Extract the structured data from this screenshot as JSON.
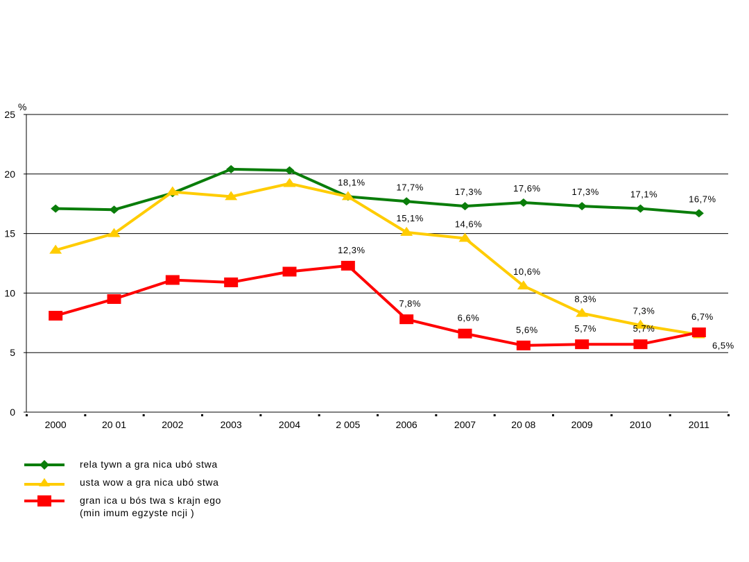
{
  "chart_data": {
    "type": "line",
    "title": "",
    "ylabel": "%",
    "xlabel": "",
    "ylim": [
      0,
      25
    ],
    "yticks": [
      "0",
      "5",
      "10",
      "15",
      "20",
      "25"
    ],
    "grid": "horizontal",
    "legend_position": "bottom-left",
    "categories": [
      "2000",
      "20 01",
      "2002",
      "2003",
      "2004",
      "2 005",
      "2006",
      "2007",
      "20 08",
      "2009",
      "2010",
      "2011"
    ],
    "series": [
      {
        "name": "rela tywn a gra nica ubó stwa",
        "color": "#0A7D0A",
        "marker": "diamond",
        "values": [
          17.1,
          17.0,
          18.4,
          20.4,
          20.3,
          18.1,
          17.7,
          17.3,
          17.6,
          17.3,
          17.1,
          16.7
        ],
        "labels": [
          "",
          "",
          "",
          "",
          "",
          "18,1%",
          "17,7%",
          "17,3%",
          "17,6%",
          "17,3%",
          "17,1%",
          "16,7%"
        ]
      },
      {
        "name": "ustawowa granica ubó stwa",
        "color": "#FFCC00",
        "marker": "triangle",
        "values": [
          13.6,
          15.0,
          18.5,
          18.1,
          19.2,
          18.1,
          15.1,
          14.6,
          10.6,
          8.3,
          7.3,
          6.5
        ],
        "labels": [
          "",
          "",
          "",
          "",
          "",
          "",
          "15,1%",
          "14,6%",
          "10,6%",
          "8,3%",
          "7,3%",
          "6,5%"
        ]
      },
      {
        "name": "gran ica u bóstwa s krajn ego (min imum egzyste ncji)",
        "color": "#FF0000",
        "marker": "square",
        "values": [
          8.1,
          9.5,
          11.1,
          10.9,
          11.8,
          12.3,
          7.8,
          6.6,
          5.6,
          5.7,
          5.7,
          6.7
        ],
        "labels": [
          "",
          "",
          "",
          "",
          "",
          "12,3%",
          "7,8%",
          "6,6%",
          "5,6%",
          "5,7%",
          "5,7%",
          "6,7%"
        ]
      }
    ]
  },
  "legend": {
    "items": [
      {
        "line1": "rela tywn a gra nica  ubó stwa",
        "line2": ""
      },
      {
        "line1": "usta wow a gra nica  ubó stwa",
        "line2": ""
      },
      {
        "line1": "gran ica u bós twa s krajn ego",
        "line2": "(min imum  egzyste ncji )"
      }
    ]
  }
}
